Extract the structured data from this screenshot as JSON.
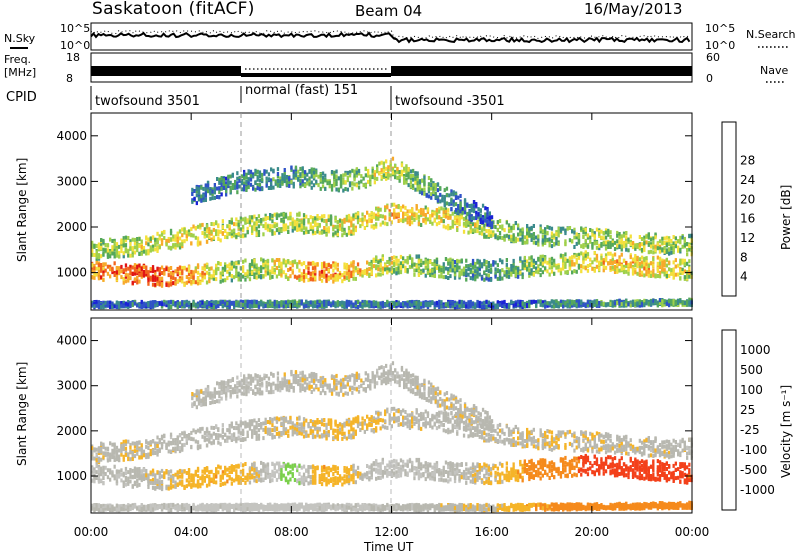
{
  "header": {
    "station": "Saskatoon (fitACF)",
    "beam": "Beam 04",
    "date": "16/May/2013"
  },
  "side_labels": {
    "nsky": "N.Sky",
    "nsearch": "N.Search",
    "freq": "Freq.",
    "mhz": "[MHz]",
    "nave": "Nave",
    "cpid": "CPID"
  },
  "noise_axis": {
    "left_top": "10^5",
    "left_bottom": "10^0",
    "right_top": "10^5",
    "right_bottom": "10^0"
  },
  "freq_axis": {
    "top": "18",
    "bottom": "8"
  },
  "nave_axis": {
    "top": "60",
    "bottom": "0"
  },
  "cpid_segments": [
    {
      "label": "twofsound 3501",
      "start_h": 0,
      "end_h": 6
    },
    {
      "label": "normal (fast) 151",
      "start_h": 6,
      "end_h": 12
    },
    {
      "label": "twofsound -3501",
      "start_h": 12,
      "end_h": 24
    }
  ],
  "x_axis": {
    "title": "Time UT",
    "ticks": [
      "00:00",
      "04:00",
      "08:00",
      "12:00",
      "16:00",
      "20:00",
      "00:00"
    ]
  },
  "power_panel": {
    "ylabel": "Slant Range [km]",
    "yticks": [
      "1000",
      "2000",
      "3000",
      "4000"
    ],
    "colorbar_label": "Power [dB]",
    "colorbar_ticks": [
      "4",
      "8",
      "12",
      "16",
      "20",
      "24",
      "28"
    ]
  },
  "velocity_panel": {
    "ylabel": "Slant Range [km]",
    "yticks": [
      "1000",
      "2000",
      "3000",
      "4000"
    ],
    "colorbar_label": "Velocity [m s⁻¹]",
    "colorbar_ticks": [
      "-1000",
      "-500",
      "-100",
      "-25",
      "25",
      "100",
      "500",
      "1000"
    ]
  },
  "colors": {
    "power_scale": [
      "#1a22d6",
      "#2f52c8",
      "#3a8a8c",
      "#55a85a",
      "#9fd04a",
      "#f4e03c",
      "#f7a92a",
      "#f2641d",
      "#e01414"
    ],
    "velocity_scale": [
      "#e01212",
      "#f3401a",
      "#f58a1c",
      "#f5b428",
      "#b8b8b0",
      "#c4c4c0",
      "#7ad04a",
      "#3aa046",
      "#2244cc"
    ]
  },
  "chart_data": {
    "type": "heatmap",
    "x_unit": "hours UT",
    "xlim": [
      0,
      24
    ],
    "ylim": [
      180,
      4500
    ],
    "power_clim": [
      0,
      32
    ],
    "velocity_levels": [
      -1000,
      -500,
      -100,
      -25,
      25,
      100,
      500,
      1000
    ],
    "echo_bands": [
      {
        "name": "F near",
        "x": [
          0,
          1,
          2,
          3,
          4,
          5,
          6,
          7,
          8,
          9,
          10,
          11,
          12,
          13,
          14,
          15,
          16,
          17,
          18,
          19,
          20,
          21,
          22,
          23,
          24
        ],
        "range_km": [
          1050,
          1000,
          950,
          900,
          950,
          1000,
          1050,
          1100,
          1050,
          1000,
          1000,
          1100,
          1200,
          1150,
          1100,
          1050,
          1050,
          1100,
          1150,
          1200,
          1250,
          1200,
          1150,
          1100,
          1050
        ],
        "power_db": [
          24,
          27,
          29,
          28,
          24,
          18,
          16,
          18,
          22,
          26,
          24,
          20,
          18,
          16,
          14,
          12,
          12,
          14,
          16,
          18,
          20,
          22,
          22,
          20,
          18
        ],
        "velocity": [
          20,
          10,
          0,
          -20,
          -60,
          -80,
          -60,
          30,
          150,
          -80,
          -60,
          20,
          40,
          20,
          10,
          0,
          -20,
          -80,
          -200,
          -400,
          -600,
          -700,
          -700,
          -600,
          -500
        ]
      },
      {
        "name": "F mid",
        "x": [
          0,
          2,
          4,
          6,
          8,
          10,
          12,
          14,
          16,
          18,
          20,
          22,
          24
        ],
        "range_km": [
          1500,
          1600,
          1800,
          2000,
          2100,
          2000,
          2300,
          2200,
          1950,
          1800,
          1750,
          1650,
          1600
        ],
        "power_db": [
          16,
          18,
          20,
          18,
          17,
          19,
          22,
          20,
          16,
          14,
          16,
          18,
          16
        ],
        "velocity": [
          0,
          -10,
          10,
          0,
          -20,
          -40,
          -10,
          10,
          0,
          -20,
          -10,
          0,
          0
        ]
      },
      {
        "name": "F far",
        "x": [
          4,
          6,
          8,
          10,
          11,
          12,
          13,
          14,
          15,
          16
        ],
        "range_km": [
          2700,
          3000,
          3100,
          3000,
          3100,
          3300,
          3000,
          2700,
          2400,
          2200
        ],
        "power_db": [
          8,
          10,
          12,
          14,
          16,
          20,
          14,
          10,
          8,
          6
        ],
        "velocity": [
          0,
          10,
          0,
          -10,
          0,
          10,
          0,
          -10,
          0,
          0
        ]
      },
      {
        "name": "E near ground",
        "x": [
          0,
          4,
          8,
          12,
          16,
          20,
          24
        ],
        "range_km": [
          300,
          300,
          310,
          300,
          300,
          320,
          350
        ],
        "power_db": [
          6,
          8,
          10,
          8,
          6,
          10,
          12
        ],
        "velocity": [
          20,
          40,
          60,
          20,
          -20,
          -200,
          -300
        ]
      }
    ]
  }
}
